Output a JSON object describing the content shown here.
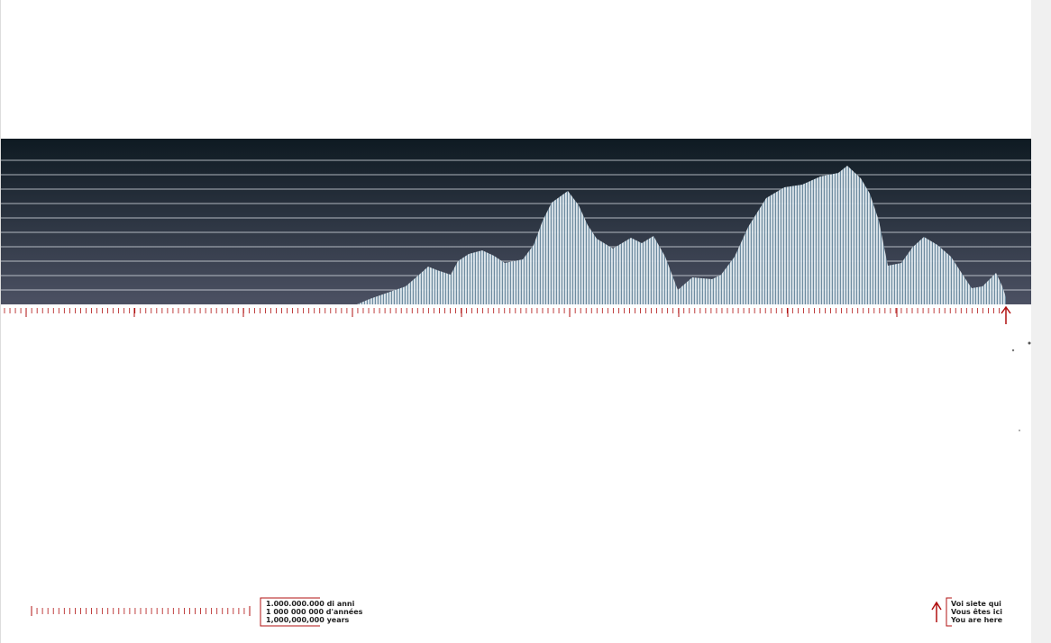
{
  "scale_legend": {
    "lines": [
      "1.000.000.000 di anni",
      "1 000 000 000 d'années",
      "1,000,000,000 years"
    ]
  },
  "here_legend": {
    "lines": [
      "Voi siete qui",
      "Vous êtes ici",
      "You are here"
    ]
  }
}
